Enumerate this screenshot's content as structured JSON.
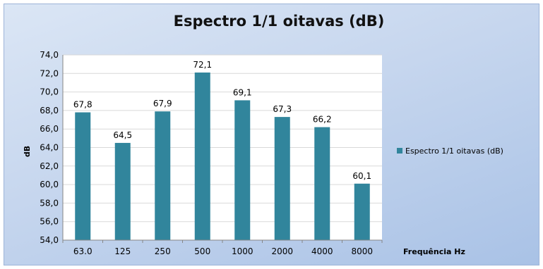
{
  "chart_data": {
    "type": "bar",
    "title": "Espectro 1/1 oitavas (dB)",
    "xlabel": "Frequência Hz",
    "ylabel": "dB",
    "ylim": [
      54.0,
      74.0
    ],
    "ytick_step": 2.0,
    "grid": true,
    "legend_position": "right",
    "categories": [
      "63.0",
      "125",
      "250",
      "500",
      "1000",
      "2000",
      "4000",
      "8000"
    ],
    "series": [
      {
        "name": "Espectro 1/1 oitavas (dB)",
        "color": "#31859c",
        "values": [
          67.8,
          64.5,
          67.9,
          72.1,
          69.1,
          67.3,
          66.2,
          60.1
        ],
        "labels": [
          "67,8",
          "64,5",
          "67,9",
          "72,1",
          "69,1",
          "67,3",
          "66,2",
          "60,1"
        ]
      }
    ],
    "ytick_labels": [
      "54,0",
      "56,0",
      "58,0",
      "60,0",
      "62,0",
      "64,0",
      "66,0",
      "68,0",
      "70,0",
      "72,0",
      "74,0"
    ]
  }
}
